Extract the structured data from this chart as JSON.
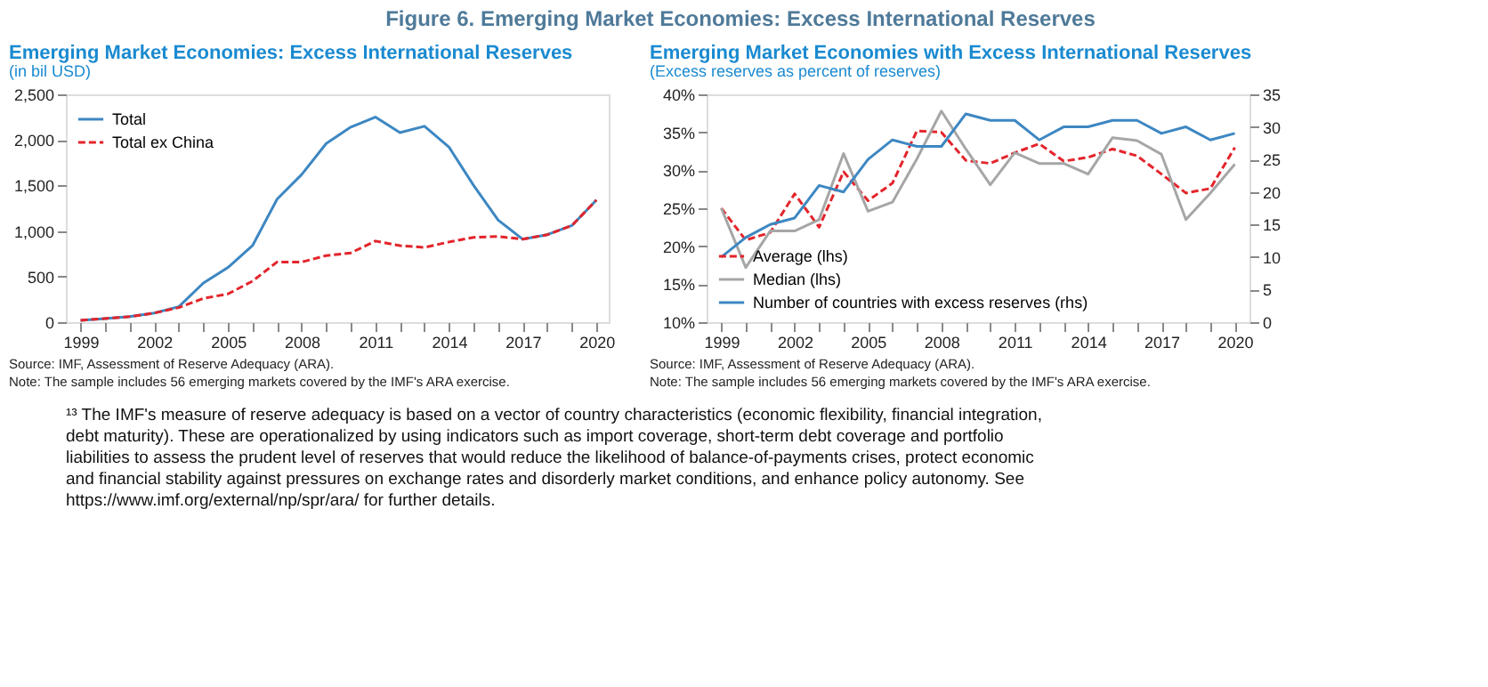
{
  "chart_data": [
    {
      "type": "line",
      "title": "Emerging Market Economies: Excess International Reserves",
      "subtitle": "(in bil USD)",
      "annotations": [
        "Figure 6. Emerging Market Economies: Excess International Reserves",
        "Source: IMF, Assessment of Reserve Adequacy (ARA).",
        "Note: The sample includes 56 emerging markets covered by the IMF's ARA exercise."
      ],
      "x": [
        1999,
        2000,
        2001,
        2002,
        2003,
        2004,
        2005,
        2006,
        2007,
        2008,
        2009,
        2010,
        2011,
        2012,
        2013,
        2014,
        2015,
        2016,
        2017,
        2018,
        2019,
        2020
      ],
      "series": [
        {
          "name": "Total",
          "color": "#3d87c2",
          "line_style": "solid",
          "values": [
            20,
            40,
            60,
            100,
            170,
            430,
            600,
            840,
            1350,
            1620,
            1960,
            2140,
            2250,
            2080,
            2150,
            1920,
            1500,
            1120,
            910,
            960,
            1060,
            1340
          ]
        },
        {
          "name": "Total ex China",
          "color": "#e3242b",
          "line_style": "dashed",
          "values": [
            20,
            40,
            60,
            100,
            160,
            260,
            310,
            450,
            660,
            660,
            730,
            760,
            890,
            840,
            820,
            880,
            930,
            940,
            910,
            960,
            1060,
            1340
          ]
        }
      ],
      "xlim": [
        1998.4,
        2020.5
      ],
      "xticks": [
        1999,
        {
          "value": 2000,
          "label": null
        },
        {
          "value": 2001,
          "label": null
        },
        2002,
        {
          "value": 2003,
          "label": null
        },
        {
          "value": 2004,
          "label": null
        },
        2005,
        {
          "value": 2006,
          "label": null
        },
        {
          "value": 2007,
          "label": null
        },
        2008,
        {
          "value": 2009,
          "label": null
        },
        {
          "value": 2010,
          "label": null
        },
        2011,
        {
          "value": 2012,
          "label": null
        },
        {
          "value": 2013,
          "label": null
        },
        2014,
        {
          "value": 2015,
          "label": null
        },
        {
          "value": 2016,
          "label": null
        },
        2017,
        {
          "value": 2018,
          "label": null
        },
        {
          "value": 2019,
          "label": null
        },
        2020
      ],
      "ylim": [
        0,
        2500
      ],
      "yticks": [
        0,
        500,
        {
          "value": 1000,
          "label": "1,000"
        },
        {
          "value": 1500,
          "label": "1,500"
        },
        {
          "value": 2000,
          "label": "2,000"
        },
        {
          "value": 2500,
          "label": "2,500"
        }
      ],
      "grid": false,
      "legend": "top left",
      "marker": "none"
    },
    {
      "type": "line",
      "title": "Emerging Market Economies with Excess International Reserves",
      "subtitle": "(Excess reserves as percent of reserves)",
      "annotations": [
        "Source: IMF, Assessment of Reserve Adequacy (ARA).",
        "Note: The sample includes 56 emerging markets covered by the IMF's ARA exercise.",
        "¹³ The IMF's measure of reserve adequacy is based on a vector of country characteristics (economic flexibility, financial integration, debt maturity). These are operationalized by using indicators such as import coverage, short-term debt coverage and portfolio liabilities to assess the prudent level of reserves that would reduce the likelihood of balance-of-payments crises, protect economic and financial stability against pressures on exchange rates and disorderly market conditions, and enhance policy autonomy. See https://www.imf.org/external/np/spr/ara/ for further details."
      ],
      "x": [
        1999,
        2000,
        2001,
        2002,
        2003,
        2004,
        2005,
        2006,
        2007,
        2008,
        2009,
        2010,
        2011,
        2012,
        2013,
        2014,
        2015,
        2016,
        2017,
        2018,
        2019,
        2020
      ],
      "series": [
        {
          "name": "Average (lhs)",
          "color": "#e3242b",
          "line_style": "dashed",
          "values": [
            25.0,
            20.8,
            21.8,
            26.9,
            22.5,
            29.8,
            26.0,
            28.3,
            35.2,
            35.0,
            31.3,
            30.9,
            32.3,
            33.5,
            31.2,
            31.7,
            32.8,
            31.9,
            29.5,
            27.0,
            27.6,
            33.0
          ]
        },
        {
          "name": "Median (lhs)",
          "color": "#a6a6a6",
          "line_style": "solid",
          "values": [
            25.0,
            17.2,
            22.0,
            22.0,
            23.5,
            32.2,
            24.6,
            25.8,
            31.5,
            37.8,
            32.8,
            28.1,
            32.3,
            30.9,
            30.9,
            29.5,
            34.3,
            33.9,
            32.1,
            23.5,
            27.0,
            30.8
          ]
        },
        {
          "name": "Number of countries with excess reserves (rhs)",
          "color": "#3d87c2",
          "line_style": "solid",
          "axis": "y2",
          "values": [
            10,
            13,
            15,
            16,
            21,
            20,
            25,
            28,
            27,
            27,
            32,
            31,
            31,
            28,
            30,
            30,
            31,
            31,
            29,
            30,
            28,
            29
          ]
        }
      ],
      "xlim": [
        1998.4,
        2020.6
      ],
      "xticks": [
        1999,
        {
          "value": 2000,
          "label": null
        },
        {
          "value": 2001,
          "label": null
        },
        2002,
        {
          "value": 2003,
          "label": null
        },
        {
          "value": 2004,
          "label": null
        },
        2005,
        {
          "value": 2006,
          "label": null
        },
        {
          "value": 2007,
          "label": null
        },
        2008,
        {
          "value": 2009,
          "label": null
        },
        {
          "value": 2010,
          "label": null
        },
        2011,
        {
          "value": 2012,
          "label": null
        },
        {
          "value": 2013,
          "label": null
        },
        2014,
        {
          "value": 2015,
          "label": null
        },
        {
          "value": 2016,
          "label": null
        },
        2017,
        {
          "value": 2018,
          "label": null
        },
        {
          "value": 2019,
          "label": null
        },
        2020
      ],
      "ylim": [
        10,
        40
      ],
      "yticks": [
        {
          "value": 10,
          "label": "10%"
        },
        {
          "value": 15,
          "label": "15%"
        },
        {
          "value": 20,
          "label": "20%"
        },
        {
          "value": 25,
          "label": "25%"
        },
        {
          "value": 30,
          "label": "30%"
        },
        {
          "value": 35,
          "label": "35%"
        },
        {
          "value": 40,
          "label": "40%"
        }
      ],
      "y2lim": [
        0,
        35
      ],
      "y2ticks": [
        0,
        5,
        10,
        15,
        20,
        25,
        30,
        35
      ],
      "grid": false,
      "legend": "bottom left",
      "marker": "none"
    }
  ]
}
